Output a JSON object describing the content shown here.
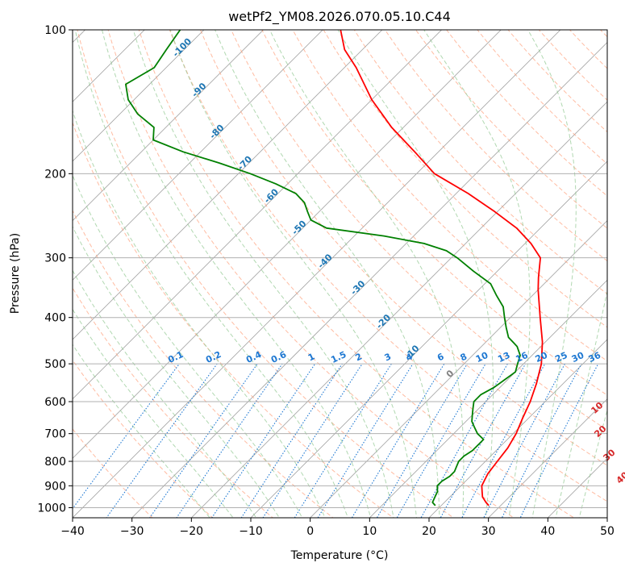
{
  "chart_data": {
    "type": "line",
    "title": "wetPf2_YM08.2026.070.05.10.C44",
    "xlabel": "Temperature (°C)",
    "ylabel": "Pressure (hPa)",
    "xlim": [
      -40,
      50
    ],
    "ylim": [
      1050,
      100
    ],
    "y_scale": "log",
    "x_ticks": [
      -40,
      -30,
      -20,
      -10,
      0,
      10,
      20,
      30,
      40,
      50
    ],
    "y_ticks": [
      1000,
      900,
      800,
      700,
      600,
      500,
      400,
      300,
      200,
      100
    ],
    "grid": "horizontal pressure lines",
    "colors": {
      "temperature": "#ff0000",
      "dewpoint": "#008000",
      "isotherm": "#808080",
      "dry_adiabat": "#ffa07a",
      "moist_adiabat": "#90c890",
      "mixing_ratio": "#1e78d2",
      "isotherm_label": "#1f77b4",
      "dry_adiabat_label": "#d62728",
      "ice_label": "#808080",
      "axes": "#000000"
    },
    "series": [
      {
        "key": "temperature",
        "pressure": [
          990,
          975,
          950,
          925,
          900,
          875,
          850,
          800,
          750,
          700,
          650,
          600,
          550,
          500,
          450,
          400,
          350,
          330,
          300,
          280,
          260,
          240,
          220,
          200,
          180,
          160,
          140,
          120,
          110,
          100
        ],
        "values": [
          28,
          27,
          25.5,
          24.5,
          23.5,
          23,
          22.5,
          22,
          21.5,
          20.5,
          19,
          17.5,
          15.5,
          13,
          9.5,
          5,
          0,
          -2,
          -5,
          -9,
          -14,
          -20.5,
          -28,
          -37,
          -44,
          -52,
          -60,
          -68,
          -73,
          -77
        ]
      },
      {
        "key": "dewpoint",
        "pressure": [
          990,
          975,
          950,
          925,
          900,
          880,
          860,
          840,
          820,
          800,
          780,
          760,
          740,
          720,
          700,
          680,
          660,
          640,
          620,
          600,
          580,
          560,
          540,
          520,
          500,
          480,
          460,
          440,
          420,
          400,
          380,
          360,
          340,
          320,
          300,
          290,
          280,
          270,
          260,
          250,
          240,
          230,
          220,
          210,
          200,
          190,
          180,
          170,
          160,
          150,
          140,
          130,
          120,
          110,
          100
        ],
        "values": [
          19,
          18,
          17.5,
          17,
          16,
          16,
          16.5,
          16.5,
          16,
          15.5,
          15.5,
          16,
          16,
          16,
          14,
          12.5,
          11,
          10,
          9,
          8,
          8,
          9,
          9.5,
          10,
          9,
          8,
          6,
          3,
          1,
          -1,
          -3,
          -6,
          -9,
          -14,
          -19,
          -22,
          -27,
          -35,
          -46,
          -50,
          -52,
          -54,
          -57,
          -62,
          -68,
          -75,
          -83,
          -90,
          -92,
          -97,
          -101,
          -104,
          -102,
          -103,
          -104
        ]
      }
    ],
    "isotherm_labels": [
      "-100",
      "-90",
      "-80",
      "-70",
      "-60",
      "-50",
      "-40",
      "-30",
      "-20",
      "-10",
      "0"
    ],
    "isotherm_label_positions": [
      {
        "t": -100,
        "p": 110
      },
      {
        "t": -90,
        "p": 135
      },
      {
        "t": -80,
        "p": 165
      },
      {
        "t": -70,
        "p": 192
      },
      {
        "t": -60,
        "p": 225
      },
      {
        "t": -50,
        "p": 262
      },
      {
        "t": -40,
        "p": 308
      },
      {
        "t": -30,
        "p": 350
      },
      {
        "t": -20,
        "p": 412
      },
      {
        "t": -10,
        "p": 478
      },
      {
        "t": 0,
        "p": 530
      }
    ],
    "mixing_ratio_labels": [
      "0.1",
      "0.2",
      "0.4",
      "0.6",
      "1",
      "1.5",
      "2",
      "3",
      "4",
      "6",
      "8",
      "10",
      "13",
      "16",
      "20",
      "25",
      "30",
      "36"
    ],
    "mixing_ratio_values": [
      0.1,
      0.2,
      0.4,
      0.6,
      1,
      1.5,
      2,
      3,
      4,
      6,
      8,
      10,
      13,
      16,
      20,
      25,
      30,
      36
    ],
    "dry_adiabat_labels": [
      "10",
      "20",
      "30",
      "40"
    ],
    "dry_adiabat_label_positions": [
      {
        "t": 30.5,
        "p": 625
      },
      {
        "t": 35,
        "p": 700
      },
      {
        "t": 40.5,
        "p": 785
      },
      {
        "t": 46.5,
        "p": 875
      }
    ]
  }
}
